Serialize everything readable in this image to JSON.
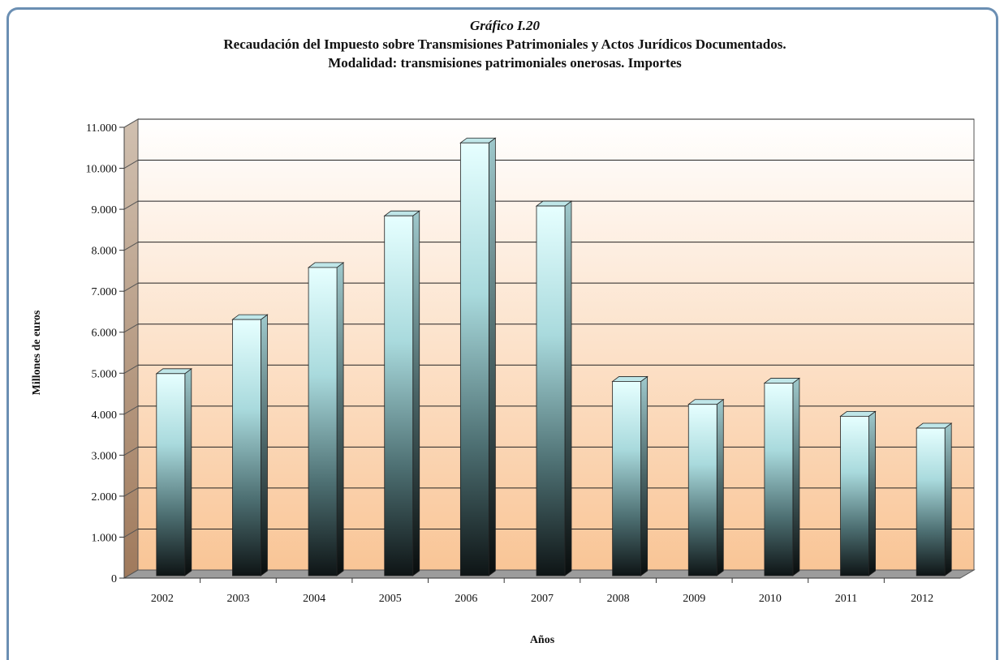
{
  "chart_data": {
    "type": "bar",
    "title": "Gráfico I.20",
    "subtitle_lines": [
      "Recaudación del Impuesto sobre Transmisiones Patrimoniales y Actos Jurídicos Documentados.",
      "Modalidad: transmisiones patrimoniales onerosas.  Importes"
    ],
    "xlabel": "Años",
    "ylabel": "Millones de euros",
    "categories": [
      "2002",
      "2003",
      "2004",
      "2005",
      "2006",
      "2007",
      "2008",
      "2009",
      "2010",
      "2011",
      "2012"
    ],
    "values": [
      4930,
      6250,
      7520,
      8780,
      10560,
      9020,
      4740,
      4180,
      4700,
      3890,
      3600
    ],
    "ylim": [
      0,
      11000
    ],
    "yticks": [
      0,
      1000,
      2000,
      3000,
      4000,
      5000,
      6000,
      7000,
      8000,
      9000,
      10000,
      11000
    ],
    "ytick_labels": [
      "0",
      "1.000",
      "2.000",
      "3.000",
      "4.000",
      "5.000",
      "6.000",
      "7.000",
      "8.000",
      "9.000",
      "10.000",
      "11.000"
    ],
    "grid": true,
    "legend": "none",
    "colors": {
      "bar_top": "#e6ffff",
      "bar_mid": "#7fb0b5",
      "bar_bottom": "#0e1415",
      "wall_top": "#ffffff",
      "wall_bottom": "#f9c596",
      "side_wall": "#a8876a",
      "frame": "#6b8fb3"
    }
  }
}
